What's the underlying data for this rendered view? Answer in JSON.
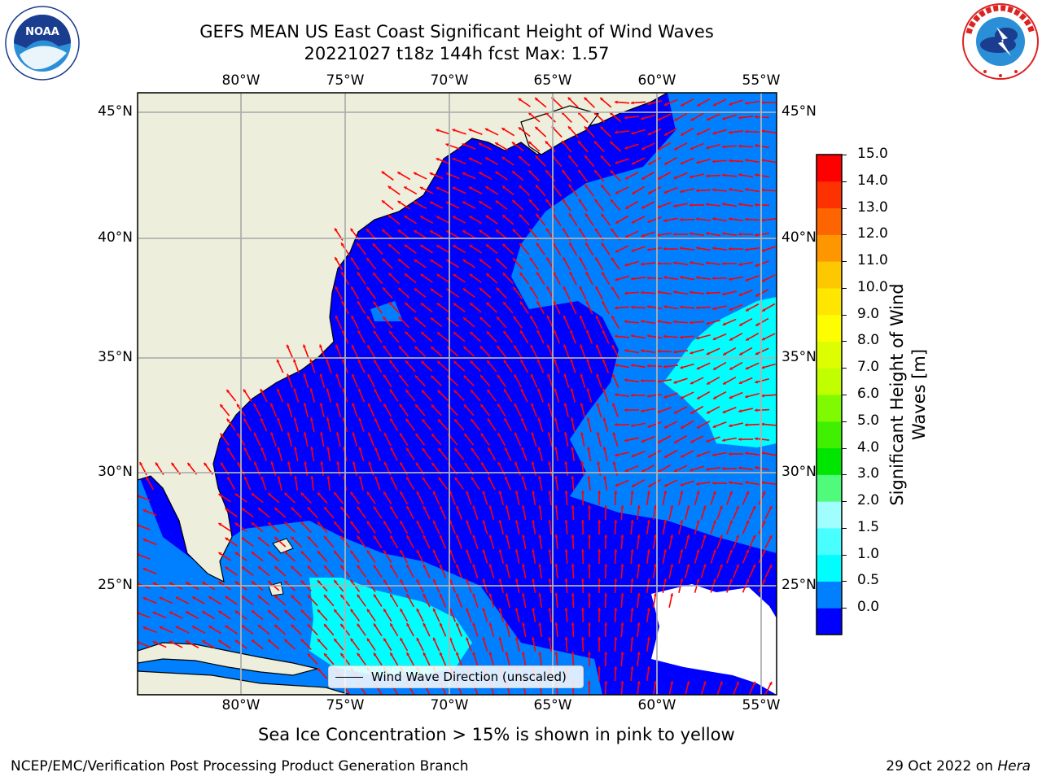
{
  "title": {
    "line1": "GEFS MEAN US East Coast Significant Height of Wind Waves",
    "line2": "20221027 t18z 144h fcst   Max: 1.57"
  },
  "logos": {
    "left": {
      "text": "NOAA",
      "ring_text": "NATIONAL OCEANIC AND ATMOSPHERIC ADMINISTRATION · U.S. DEPARTMENT OF COMMERCE"
    },
    "right": {
      "ring_text": "NATIONAL WEATHER SERVICE"
    }
  },
  "map": {
    "x_ticks": [
      "80°W",
      "75°W",
      "70°W",
      "65°W",
      "60°W",
      "55°W"
    ],
    "y_ticks": [
      "45°N",
      "40°N",
      "35°N",
      "30°N",
      "25°N"
    ],
    "legend_label": "Wind Wave Direction (unscaled)",
    "colors": {
      "land": "#eeeedc",
      "ocean_0": "#0000fe",
      "ocean_05": "#0080fe",
      "ocean_10": "#00fefe",
      "arrows": "#ff0000",
      "grid": "#b0b0b0"
    }
  },
  "colorbar": {
    "label_line1": "Significant Height of Wind",
    "label_line2": "Waves [m]",
    "ticks": [
      "15.0",
      "14.0",
      "13.0",
      "12.0",
      "11.0",
      "10.0",
      "9.0",
      "8.0",
      "7.0",
      "6.0",
      "5.0",
      "4.0",
      "3.0",
      "2.0",
      "1.5",
      "1.0",
      "0.5",
      "0.0"
    ],
    "colors": [
      "#0000fe",
      "#0080fe",
      "#00fefe",
      "#48fefe",
      "#a0fefe",
      "#50fa7a",
      "#00e600",
      "#40f000",
      "#80fa00",
      "#c0fe00",
      "#dcfe00",
      "#fefe00",
      "#fee600",
      "#fec800",
      "#fe9600",
      "#fe6400",
      "#fe3200",
      "#fe0000"
    ]
  },
  "footer": {
    "note": "Sea Ice Concentration > 15% is shown in pink to yellow",
    "credit": "NCEP/EMC/Verification Post Processing Product Generation Branch",
    "date": "29 Oct 2022 on",
    "machine": "Hera"
  }
}
